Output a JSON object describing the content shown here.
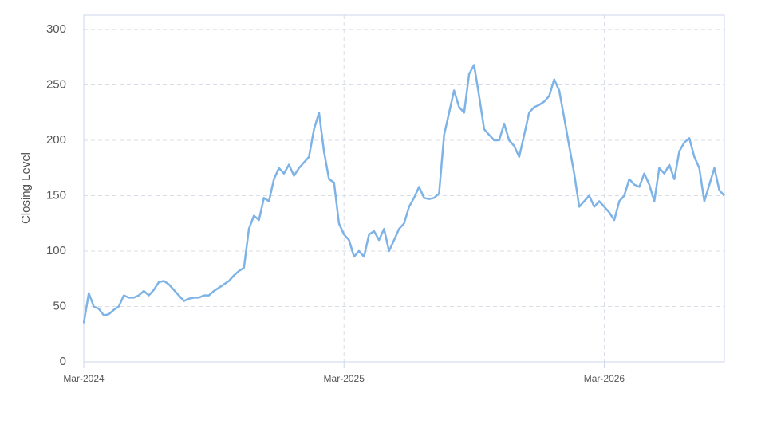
{
  "chart_data": {
    "type": "line",
    "y_label": "Closing Level",
    "color": "#7db3e6",
    "grid": true,
    "ylim": [
      0,
      313
    ],
    "yticks": [
      0,
      50,
      100,
      150,
      200,
      250,
      300
    ],
    "categories": [
      "Mar-2024",
      null,
      null,
      null,
      null,
      null,
      null,
      null,
      null,
      null,
      null,
      null,
      null,
      null,
      null,
      null,
      null,
      null,
      null,
      null,
      null,
      null,
      null,
      null,
      null,
      null,
      null,
      null,
      null,
      null,
      null,
      null,
      null,
      null,
      null,
      null,
      null,
      null,
      null,
      null,
      null,
      null,
      null,
      null,
      null,
      null,
      null,
      null,
      null,
      null,
      null,
      null,
      "Mar-2025",
      null,
      null,
      null,
      null,
      null,
      null,
      null,
      null,
      null,
      null,
      null,
      null,
      null,
      null,
      null,
      null,
      null,
      null,
      null,
      null,
      null,
      null,
      null,
      null,
      null,
      null,
      null,
      null,
      null,
      null,
      null,
      null,
      null,
      null,
      null,
      null,
      null,
      null,
      null,
      null,
      null,
      null,
      null,
      null,
      null,
      null,
      null,
      null,
      null,
      null,
      null,
      "Mar-2026",
      null,
      null,
      null,
      null,
      null,
      null,
      null,
      null,
      null,
      null,
      null,
      null,
      null,
      null,
      null,
      null,
      null,
      null,
      null,
      null,
      null,
      null,
      null,
      null
    ],
    "values": [
      35,
      62,
      50,
      48,
      42,
      43,
      47,
      50,
      60,
      58,
      58,
      60,
      64,
      60,
      65,
      72,
      73,
      70,
      65,
      60,
      55,
      57,
      58,
      58,
      60,
      60,
      64,
      67,
      70,
      73,
      78,
      82,
      85,
      120,
      132,
      128,
      148,
      145,
      165,
      175,
      170,
      178,
      168,
      175,
      180,
      185,
      210,
      225,
      190,
      165,
      162,
      125,
      115,
      110,
      95,
      100,
      95,
      115,
      118,
      110,
      120,
      100,
      110,
      120,
      125,
      140,
      148,
      158,
      148,
      147,
      148,
      152,
      205,
      225,
      245,
      230,
      225,
      260,
      268,
      240,
      210,
      205,
      200,
      200,
      215,
      200,
      195,
      185,
      205,
      225,
      230,
      232,
      235,
      240,
      255,
      245,
      220,
      195,
      170,
      140,
      145,
      150,
      140,
      145,
      140,
      135,
      128,
      145,
      150,
      165,
      160,
      158,
      170,
      160,
      145,
      175,
      170,
      178,
      165,
      190,
      198,
      202,
      185,
      175,
      145,
      160,
      175,
      155,
      150
    ]
  }
}
